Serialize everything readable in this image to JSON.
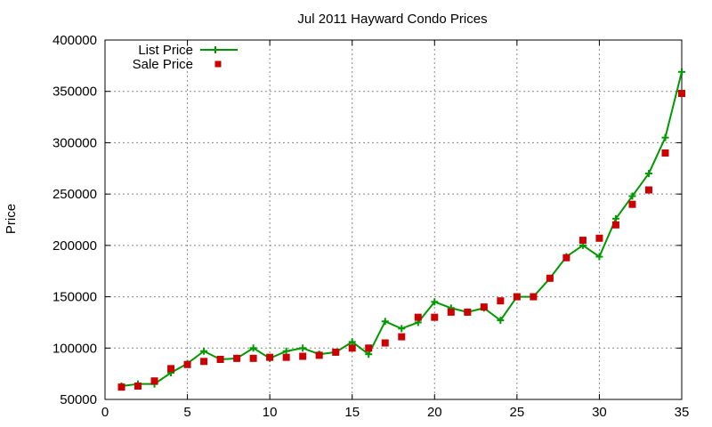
{
  "chart_data": {
    "type": "line",
    "title": "Jul 2011 Hayward Condo Prices",
    "xlabel": "",
    "ylabel": "Price",
    "xlim": [
      0,
      35
    ],
    "ylim": [
      50000,
      400000
    ],
    "x_ticks": [
      0,
      5,
      10,
      15,
      20,
      25,
      30,
      35
    ],
    "y_ticks": [
      50000,
      100000,
      150000,
      200000,
      250000,
      300000,
      350000,
      400000
    ],
    "grid": true,
    "legend_position": "top-left",
    "series": [
      {
        "name": "List Price",
        "style": "line-plus",
        "color": "#009900",
        "x": [
          1,
          2,
          3,
          4,
          5,
          6,
          7,
          8,
          9,
          10,
          11,
          12,
          13,
          14,
          15,
          16,
          17,
          18,
          19,
          20,
          21,
          22,
          23,
          24,
          25,
          26,
          27,
          28,
          29,
          30,
          31,
          32,
          33,
          34,
          35
        ],
        "values": [
          63000,
          65000,
          65000,
          76000,
          85000,
          97000,
          89000,
          90000,
          100000,
          90000,
          97000,
          100000,
          94000,
          96000,
          106000,
          94000,
          126000,
          119000,
          125000,
          145000,
          139000,
          135000,
          139000,
          127000,
          150000,
          150000,
          168000,
          189000,
          200000,
          189000,
          226000,
          248000,
          270000,
          305000,
          369000
        ]
      },
      {
        "name": "Sale Price",
        "style": "square-marker",
        "color": "#cc0000",
        "x": [
          1,
          2,
          3,
          4,
          5,
          6,
          7,
          8,
          9,
          10,
          11,
          12,
          13,
          14,
          15,
          16,
          17,
          18,
          19,
          20,
          21,
          22,
          23,
          24,
          25,
          26,
          27,
          28,
          29,
          30,
          31,
          32,
          33,
          34,
          35
        ],
        "values": [
          62000,
          63000,
          68000,
          80000,
          84000,
          87000,
          89000,
          90000,
          90000,
          91000,
          91000,
          92000,
          93000,
          96000,
          100000,
          100000,
          105000,
          111000,
          130000,
          130000,
          135000,
          135000,
          140000,
          146000,
          150000,
          150000,
          168000,
          188000,
          205000,
          207000,
          220000,
          240000,
          254000,
          290000,
          348000
        ]
      }
    ]
  }
}
